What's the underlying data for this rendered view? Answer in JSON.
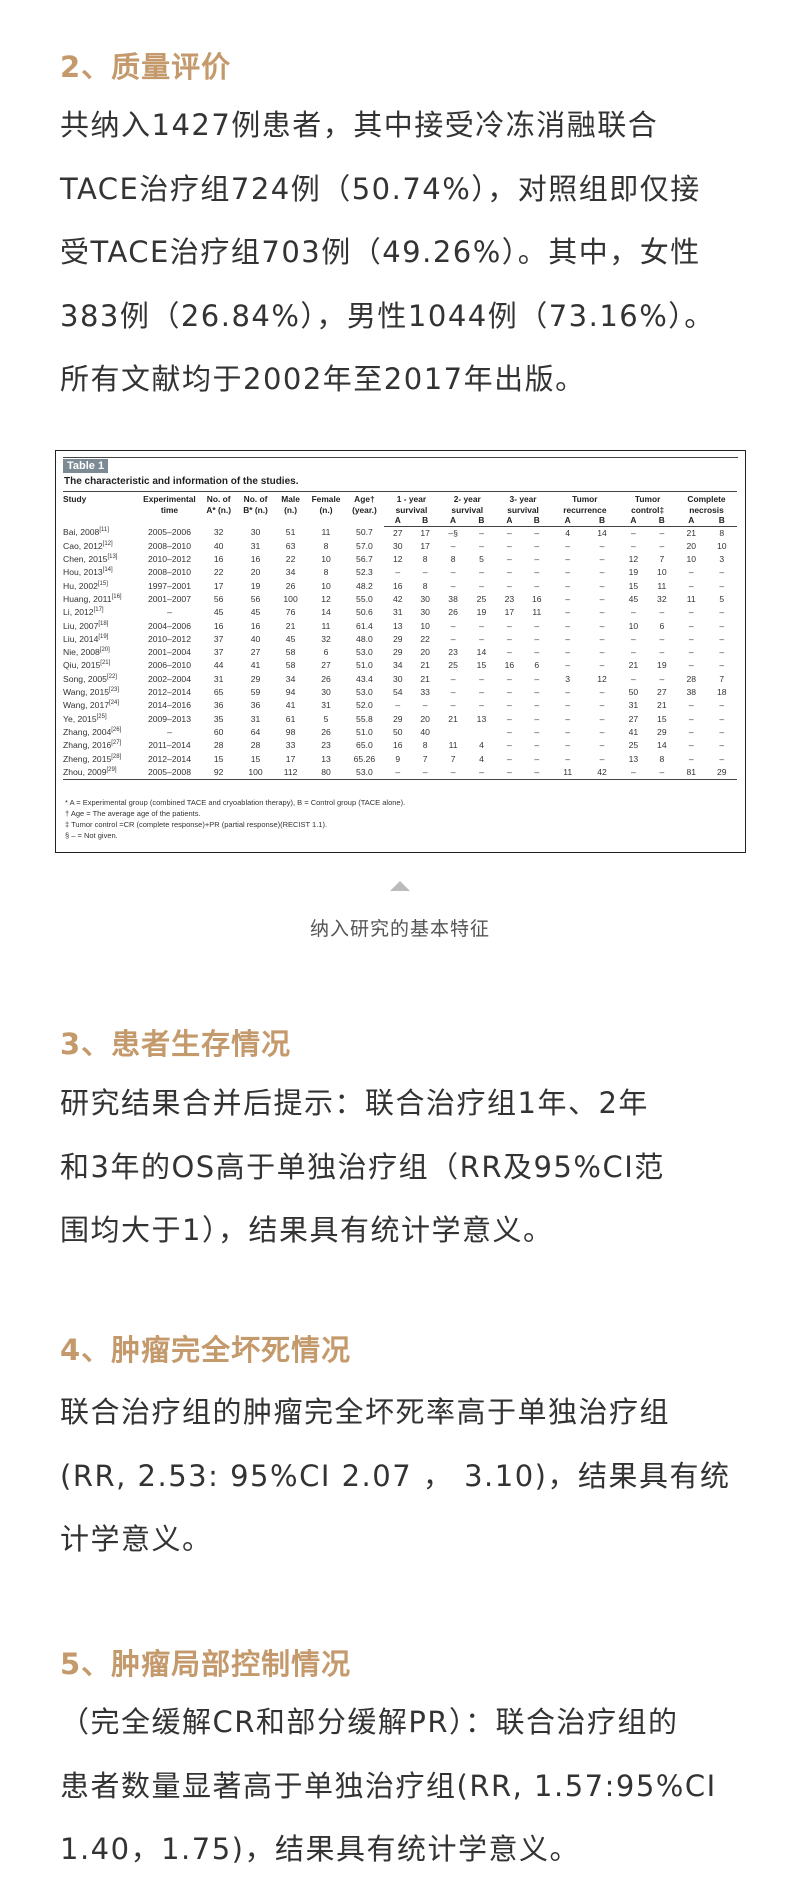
{
  "sections": [
    {
      "heading": "2、质量评价",
      "lines": [
        "共纳入1427例患者，其中接受冷冻消融联合",
        "TACE治疗组724例（50.74%），对照组即仅接",
        "受TACE治疗组703例（49.26%）。其中，女性",
        "383例（26.84%），男性1044例（73.16%）。",
        "所有文献均于2002年至2017年出版。"
      ]
    },
    {
      "heading": "3、患者生存情况",
      "lines": [
        "研究结果合并后提示：联合治疗组1年、2年",
        "和3年的OS高于单独治疗组（RR及95%CI范",
        "围均大于1），结果具有统计学意义。"
      ]
    },
    {
      "heading": "4、肿瘤完全坏死情况",
      "lines": [
        "联合治疗组的肿瘤完全坏死率高于单独治疗组",
        "(RR, 2.53: 95%CI 2.07 ， 3.10)，结果具有统",
        "计学意义。"
      ]
    },
    {
      "heading": "5、肿瘤局部控制情况",
      "lines": [
        "（完全缓解CR和部分缓解PR）：联合治疗组的",
        "患者数量显著高于单独治疗组(RR, 1.57:95%CI",
        "1.40，1.75)，结果具有统计学意义。"
      ]
    }
  ],
  "table": {
    "label": "Table 1",
    "title": "The characteristic and information of the studies.",
    "headers": [
      {
        "l1": "Study",
        "l2": ""
      },
      {
        "l1": "Experimental",
        "l2": "time"
      },
      {
        "l1": "No. of",
        "l2": "A* (n.)"
      },
      {
        "l1": "No. of",
        "l2": "B* (n.)"
      },
      {
        "l1": "Male",
        "l2": "(n.)"
      },
      {
        "l1": "Female",
        "l2": "(n.)"
      },
      {
        "l1": "Age†",
        "l2": "(year.)"
      }
    ],
    "group_headers": [
      {
        "l1": "1 - year",
        "l2": "survival"
      },
      {
        "l1": "2- year",
        "l2": "survival"
      },
      {
        "l1": "3- year",
        "l2": "survival"
      },
      {
        "l1": "Tumor",
        "l2": "recurrence"
      },
      {
        "l1": "Tumor",
        "l2": "control‡"
      },
      {
        "l1": "Complete",
        "l2": "necrosis"
      }
    ],
    "sub_a": "A",
    "sub_b": "B",
    "rows": [
      {
        "study": "Bai, 2008",
        "ref": "[11]",
        "cells": [
          "2005–2006",
          "32",
          "30",
          "51",
          "11",
          "50.7",
          "27",
          "17",
          "–§",
          "–",
          "–",
          "–",
          "4",
          "14",
          "–",
          "–",
          "21",
          "8"
        ]
      },
      {
        "study": "Cao, 2012",
        "ref": "[12]",
        "cells": [
          "2008–2010",
          "40",
          "31",
          "63",
          "8",
          "57.0",
          "30",
          "17",
          "–",
          "–",
          "–",
          "–",
          "–",
          "–",
          "–",
          "–",
          "20",
          "10"
        ]
      },
      {
        "study": "Chen, 2015",
        "ref": "[13]",
        "cells": [
          "2010–2012",
          "16",
          "16",
          "22",
          "10",
          "56.7",
          "12",
          "8",
          "8",
          "5",
          "–",
          "–",
          "–",
          "–",
          "12",
          "7",
          "10",
          "3"
        ]
      },
      {
        "study": "Hou, 2013",
        "ref": "[14]",
        "cells": [
          "2008–2010",
          "22",
          "20",
          "34",
          "8",
          "52.3",
          "–",
          "–",
          "–",
          "–",
          "–",
          "–",
          "–",
          "–",
          "19",
          "10",
          "–",
          "–"
        ]
      },
      {
        "study": "Hu, 2002",
        "ref": "[15]",
        "cells": [
          "1997–2001",
          "17",
          "19",
          "26",
          "10",
          "48.2",
          "16",
          "8",
          "–",
          "–",
          "–",
          "–",
          "–",
          "–",
          "15",
          "11",
          "–",
          "–"
        ]
      },
      {
        "study": "Huang, 2011",
        "ref": "[16]",
        "cells": [
          "2001–2007",
          "56",
          "56",
          "100",
          "12",
          "55.0",
          "42",
          "30",
          "38",
          "25",
          "23",
          "16",
          "–",
          "–",
          "45",
          "32",
          "11",
          "5"
        ]
      },
      {
        "study": "Li, 2012",
        "ref": "[17]",
        "cells": [
          "–",
          "45",
          "45",
          "76",
          "14",
          "50.6",
          "31",
          "30",
          "26",
          "19",
          "17",
          "11",
          "–",
          "–",
          "–",
          "–",
          "–",
          "–"
        ]
      },
      {
        "study": "Liu, 2007",
        "ref": "[18]",
        "cells": [
          "2004–2006",
          "16",
          "16",
          "21",
          "11",
          "61.4",
          "13",
          "10",
          "–",
          "–",
          "–",
          "–",
          "–",
          "–",
          "10",
          "6",
          "–",
          "–"
        ]
      },
      {
        "study": "Liu, 2014",
        "ref": "[19]",
        "cells": [
          "2010–2012",
          "37",
          "40",
          "45",
          "32",
          "48.0",
          "29",
          "22",
          "–",
          "–",
          "–",
          "–",
          "–",
          "–",
          "–",
          "–",
          "–",
          "–"
        ]
      },
      {
        "study": "Nie, 2008",
        "ref": "[20]",
        "cells": [
          "2001–2004",
          "37",
          "27",
          "58",
          "6",
          "53.0",
          "29",
          "20",
          "23",
          "14",
          "–",
          "–",
          "–",
          "–",
          "–",
          "–",
          "–",
          "–"
        ]
      },
      {
        "study": "Qiu, 2015",
        "ref": "[21]",
        "cells": [
          "2006–2010",
          "44",
          "41",
          "58",
          "27",
          "51.0",
          "34",
          "21",
          "25",
          "15",
          "16",
          "6",
          "–",
          "–",
          "21",
          "19",
          "–",
          "–"
        ]
      },
      {
        "study": "Song, 2005",
        "ref": "[22]",
        "cells": [
          "2002–2004",
          "31",
          "29",
          "34",
          "26",
          "43.4",
          "30",
          "21",
          "–",
          "–",
          "–",
          "–",
          "3",
          "12",
          "–",
          "–",
          "28",
          "7"
        ]
      },
      {
        "study": "Wang, 2015",
        "ref": "[23]",
        "cells": [
          "2012–2014",
          "65",
          "59",
          "94",
          "30",
          "53.0",
          "54",
          "33",
          "–",
          "–",
          "–",
          "–",
          "–",
          "–",
          "50",
          "27",
          "38",
          "18"
        ]
      },
      {
        "study": "Wang, 2017",
        "ref": "[24]",
        "cells": [
          "2014–2016",
          "36",
          "36",
          "41",
          "31",
          "52.0",
          "–",
          "–",
          "–",
          "–",
          "–",
          "–",
          "–",
          "–",
          "31",
          "21",
          "–",
          "–"
        ]
      },
      {
        "study": "Ye, 2015",
        "ref": "[25]",
        "cells": [
          "2009–2013",
          "35",
          "31",
          "61",
          "5",
          "55.8",
          "29",
          "20",
          "21",
          "13",
          "–",
          "–",
          "–",
          "–",
          "27",
          "15",
          "–",
          "–"
        ]
      },
      {
        "study": "Zhang, 2004",
        "ref": "[26]",
        "cells": [
          "–",
          "60",
          "64",
          "98",
          "26",
          "51.0",
          "50",
          "40",
          "",
          "",
          "–",
          "–",
          "–",
          "–",
          "41",
          "29",
          "–",
          "–"
        ]
      },
      {
        "study": "Zhang, 2016",
        "ref": "[27]",
        "cells": [
          "2011–2014",
          "28",
          "28",
          "33",
          "23",
          "65.0",
          "16",
          "8",
          "11",
          "4",
          "–",
          "–",
          "–",
          "–",
          "25",
          "14",
          "–",
          "–"
        ]
      },
      {
        "study": "Zheng, 2015",
        "ref": "[28]",
        "cells": [
          "2012–2014",
          "15",
          "15",
          "17",
          "13",
          "65.26",
          "9",
          "7",
          "7",
          "4",
          "–",
          "–",
          "–",
          "–",
          "13",
          "8",
          "–",
          "–"
        ]
      },
      {
        "study": "Zhou, 2009",
        "ref": "[29]",
        "cells": [
          "2005–2008",
          "92",
          "100",
          "112",
          "80",
          "53.0",
          "–",
          "–",
          "–",
          "–",
          "–",
          "–",
          "11",
          "42",
          "–",
          "–",
          "81",
          "29"
        ]
      }
    ],
    "footnotes": [
      "* A = Experimental group (combined TACE and cryoablation therapy), B = Control group (TACE alone).",
      "† Age = The average age of the patients.",
      "‡ Tumor control =CR (complete response)+PR (partial response)(RECIST 1.1).",
      "§ – = Not given."
    ]
  },
  "figure_caption": "纳入研究的基本特征",
  "colors": {
    "heading": "#c49a6c",
    "body": "#333333",
    "arrow": "#bbbbbb"
  }
}
